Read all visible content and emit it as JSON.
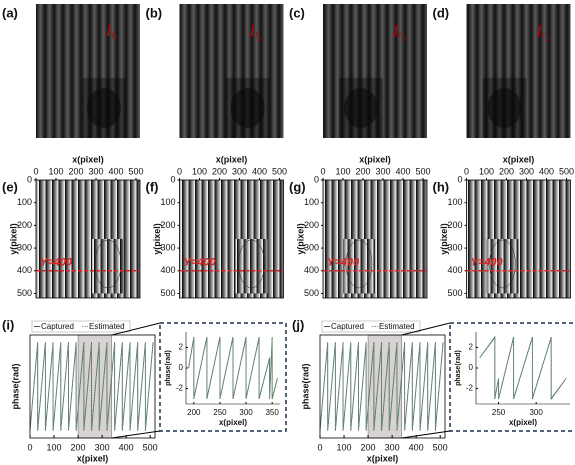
{
  "fringe_panels": [
    {
      "label": "(a)",
      "symbol": "I",
      "subscript": "l",
      "index": "1"
    },
    {
      "label": "(b)",
      "symbol": "I",
      "subscript": "l",
      "index": "2"
    },
    {
      "label": "(c)",
      "symbol": "I",
      "subscript": "r",
      "index": "3"
    },
    {
      "label": "(d)",
      "symbol": "I",
      "subscript": "r",
      "index": "2"
    }
  ],
  "phase_maps": [
    {
      "label": "(e)",
      "xlabel": "x(pixel)",
      "ylabel": "y(pixel)",
      "xlim": [
        0,
        520
      ],
      "ylim": [
        0,
        520
      ],
      "xticks": [
        0,
        100,
        200,
        300,
        400,
        500
      ],
      "yticks": [
        0,
        100,
        200,
        300,
        400,
        500
      ],
      "line_label": "Y=400",
      "line_y": 400
    },
    {
      "label": "(f)",
      "xlabel": "x(pixel)",
      "ylabel": "y(pixel)",
      "xlim": [
        0,
        520
      ],
      "ylim": [
        0,
        520
      ],
      "xticks": [
        0,
        100,
        200,
        300,
        400,
        500
      ],
      "yticks": [
        0,
        100,
        200,
        300,
        400,
        500
      ],
      "line_label": "Y=400",
      "line_y": 400
    },
    {
      "label": "(g)",
      "xlabel": "x(pixel)",
      "ylabel": "y(pixel)",
      "xlim": [
        0,
        520
      ],
      "ylim": [
        0,
        520
      ],
      "xticks": [
        0,
        100,
        200,
        300,
        400,
        500
      ],
      "yticks": [
        0,
        100,
        200,
        300,
        400,
        500
      ],
      "line_label": "Y=400",
      "line_y": 400
    },
    {
      "label": "(h)",
      "xlabel": "x(pixel)",
      "ylabel": "y(pixel)",
      "xlim": [
        0,
        520
      ],
      "ylim": [
        0,
        520
      ],
      "xticks": [
        0,
        100,
        200,
        300,
        400,
        500
      ],
      "yticks": [
        0,
        100,
        200,
        300,
        400,
        500
      ],
      "line_label": "Y=400",
      "line_y": 400
    }
  ],
  "chart_data": [
    {
      "type": "line",
      "label": "(i)",
      "xlabel": "x(pixel)",
      "ylabel": "phase(rad)",
      "xlim": [
        0,
        520
      ],
      "ylim": [
        -3.5,
        3.5
      ],
      "xticks": [
        0,
        100,
        200,
        300,
        400,
        500
      ],
      "zoom_x": [
        200,
        340
      ],
      "x": [
        0,
        32,
        32,
        64,
        64,
        96,
        96,
        128,
        128,
        160,
        160,
        192,
        192,
        224,
        224,
        256,
        256,
        288,
        288,
        320,
        320,
        352,
        352,
        384,
        384,
        416,
        416,
        448,
        448,
        480,
        480,
        512
      ],
      "series": [
        {
          "name": "Captured",
          "color": "#555555",
          "values": [
            -3,
            3,
            -3,
            3,
            -3,
            3,
            -3,
            3,
            -3,
            3,
            -3,
            3,
            -3,
            3,
            -3,
            3,
            -3,
            3,
            -3,
            3,
            -3,
            3,
            -3,
            3,
            -3,
            3,
            -3,
            3,
            -3,
            3,
            -3,
            3
          ]
        },
        {
          "name": "Estimated",
          "color": "#6aa88a",
          "values": [
            -2.9,
            2.9,
            -2.9,
            2.9,
            -2.9,
            2.9,
            -2.9,
            2.9,
            -2.9,
            2.9,
            -2.9,
            2.9,
            -2.9,
            2.9,
            -2.9,
            2.9,
            -2.9,
            2.9,
            -2.9,
            2.9,
            -2.9,
            2.9,
            -2.9,
            2.9,
            -2.9,
            2.9,
            -2.9,
            2.9,
            -2.9,
            2.9,
            -2.9,
            2.9
          ]
        }
      ],
      "inset": {
        "xlabel": "x(pixel)",
        "ylabel": "phase(rad)",
        "xlim": [
          185,
          365
        ],
        "ylim": [
          -3.5,
          3.5
        ],
        "xticks": [
          200,
          250,
          300,
          350
        ],
        "yticks": [
          -2,
          0,
          2
        ],
        "x": [
          190,
          200,
          200,
          225,
          225,
          250,
          250,
          275,
          275,
          300,
          300,
          325,
          325,
          345,
          345,
          350,
          350,
          360
        ],
        "series": [
          {
            "name": "Captured",
            "color": "#555555",
            "values": [
              0,
              3,
              -3,
              3,
              -3,
              3,
              -3,
              3,
              -3,
              3,
              -3,
              3,
              -3,
              1,
              -3,
              3,
              -3,
              -1
            ]
          },
          {
            "name": "Estimated",
            "color": "#6aa88a",
            "values": [
              0,
              2.9,
              -2.9,
              2.9,
              -2.9,
              2.9,
              -2.9,
              2.9,
              -2.9,
              2.9,
              -2.9,
              2.9,
              -2.9,
              1,
              -2.9,
              2.9,
              -2.9,
              -1
            ]
          }
        ]
      }
    },
    {
      "type": "line",
      "label": "(j)",
      "xlabel": "x(pixel)",
      "ylabel": "phase(rad)",
      "xlim": [
        0,
        520
      ],
      "ylim": [
        -3.5,
        3.5
      ],
      "xticks": [
        0,
        100,
        200,
        300,
        400,
        500
      ],
      "zoom_x": [
        200,
        340
      ],
      "x": [
        0,
        32,
        32,
        64,
        64,
        96,
        96,
        128,
        128,
        160,
        160,
        192,
        192,
        224,
        224,
        256,
        256,
        288,
        288,
        320,
        320,
        352,
        352,
        384,
        384,
        416,
        416,
        448,
        448,
        480,
        480,
        512
      ],
      "series": [
        {
          "name": "Captured",
          "color": "#555555",
          "values": [
            -3,
            3,
            -3,
            3,
            -3,
            3,
            -3,
            3,
            -3,
            3,
            -3,
            3,
            -3,
            3,
            -3,
            3,
            -3,
            3,
            -3,
            3,
            -3,
            3,
            -3,
            3,
            -3,
            3,
            -3,
            3,
            -3,
            3,
            -3,
            3
          ]
        },
        {
          "name": "Estimated",
          "color": "#6aa88a",
          "values": [
            -2.9,
            2.9,
            -2.9,
            2.9,
            -2.9,
            2.9,
            -2.9,
            2.9,
            -2.9,
            2.9,
            -2.9,
            2.9,
            -2.9,
            2.9,
            -2.9,
            2.9,
            -2.9,
            2.9,
            -2.9,
            2.9,
            -2.9,
            2.9,
            -2.9,
            2.9,
            -2.9,
            2.9,
            -2.9,
            2.9,
            -2.9,
            2.9,
            -2.9,
            2.9
          ]
        }
      ],
      "inset": {
        "xlabel": "x(pixel)",
        "ylabel": "phase(rad)",
        "xlim": [
          220,
          345
        ],
        "ylim": [
          -3.5,
          3.5
        ],
        "xticks": [
          250,
          300
        ],
        "yticks": [
          -2,
          0,
          2
        ],
        "x": [
          225,
          245,
          245,
          250,
          250,
          270,
          270,
          295,
          295,
          320,
          320,
          340
        ],
        "series": [
          {
            "name": "Captured",
            "color": "#555555",
            "values": [
              1,
              3,
              -3,
              -1,
              -3,
              3,
              -3,
              3,
              -3,
              3,
              -3,
              -1
            ]
          },
          {
            "name": "Estimated",
            "color": "#6aa88a",
            "values": [
              1,
              2.9,
              -2.9,
              -1,
              -2.9,
              2.9,
              -2.9,
              2.9,
              -2.9,
              2.9,
              -2.9,
              -1
            ]
          }
        ]
      }
    }
  ]
}
